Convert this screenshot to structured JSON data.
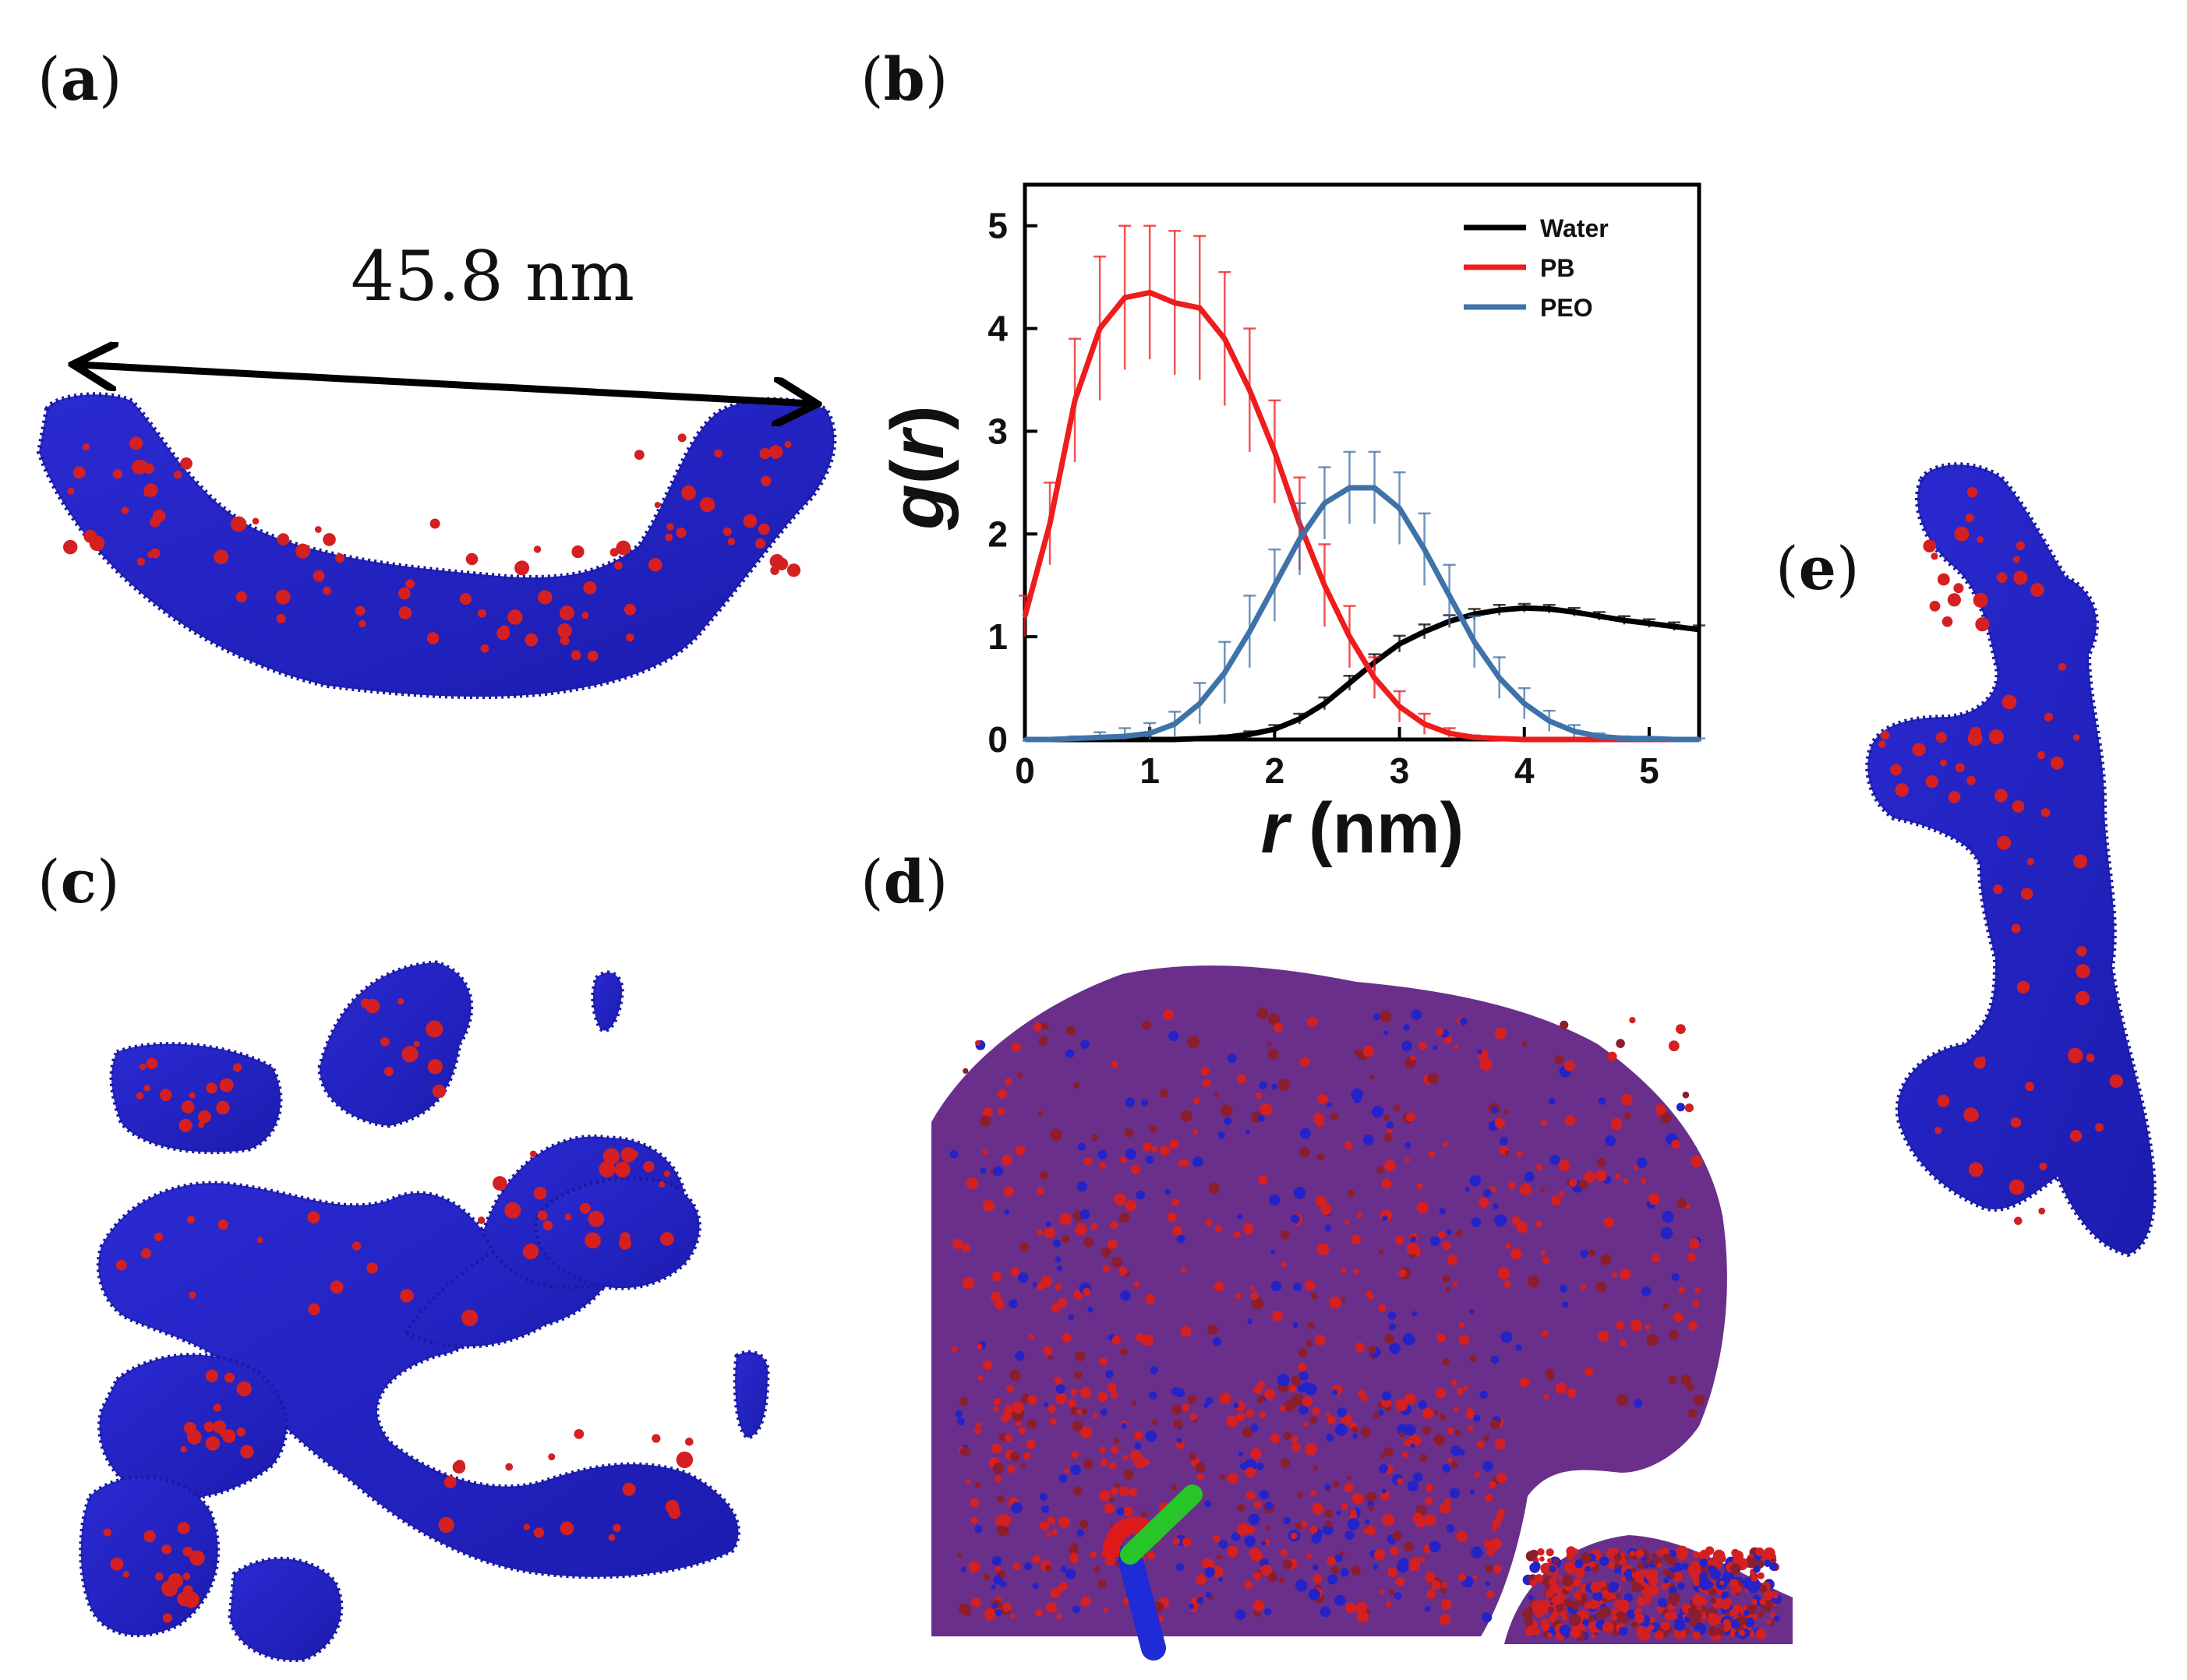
{
  "panels": {
    "a": {
      "open": "(",
      "letter": "a",
      "close": ")"
    },
    "b": {
      "open": "(",
      "letter": "b",
      "close": ")"
    },
    "c": {
      "open": "(",
      "letter": "c",
      "close": ")"
    },
    "d": {
      "open": "(",
      "letter": "d",
      "close": ")"
    },
    "e": {
      "open": "(",
      "letter": "e",
      "close": ")"
    }
  },
  "measurement": {
    "label": "45.8 nm"
  },
  "colors": {
    "shell": "#2323c8",
    "core": "#d42020",
    "water": "#000000",
    "pb": "#ee1c1c",
    "peo": "#3f72a8"
  },
  "chart_data": {
    "type": "line",
    "title": "",
    "xlabel_symbol": "r",
    "xlabel_unit": " (nm)",
    "ylabel_symbol": "g",
    "ylabel_open": "(",
    "ylabel_arg": "r",
    "ylabel_close": ")",
    "xlim": [
      0,
      5.4
    ],
    "ylim": [
      0,
      5.4
    ],
    "xticks": [
      0,
      1,
      2,
      3,
      4,
      5
    ],
    "yticks": [
      0,
      1,
      2,
      3,
      4,
      5
    ],
    "legend_position": "top-right",
    "x": [
      0,
      0.2,
      0.4,
      0.6,
      0.8,
      1.0,
      1.2,
      1.4,
      1.6,
      1.8,
      2.0,
      2.2,
      2.4,
      2.6,
      2.8,
      3.0,
      3.2,
      3.4,
      3.6,
      3.8,
      4.0,
      4.2,
      4.4,
      4.6,
      4.8,
      5.0,
      5.2,
      5.4
    ],
    "series": [
      {
        "name": "Water",
        "color": "#000000",
        "values": [
          0,
          0,
          0,
          0,
          0,
          0,
          0,
          0.01,
          0.02,
          0.05,
          0.1,
          0.2,
          0.35,
          0.55,
          0.75,
          0.93,
          1.05,
          1.15,
          1.22,
          1.26,
          1.28,
          1.27,
          1.24,
          1.2,
          1.16,
          1.13,
          1.1,
          1.07
        ],
        "errors": [
          0,
          0,
          0,
          0,
          0,
          0,
          0,
          0.01,
          0.02,
          0.03,
          0.04,
          0.05,
          0.06,
          0.07,
          0.08,
          0.08,
          0.07,
          0.06,
          0.05,
          0.05,
          0.04,
          0.04,
          0.04,
          0.04,
          0.04,
          0.04,
          0.04,
          0.04
        ]
      },
      {
        "name": "PB",
        "color": "#ee1c1c",
        "values": [
          1.2,
          2.1,
          3.3,
          4.0,
          4.3,
          4.35,
          4.25,
          4.2,
          3.9,
          3.4,
          2.8,
          2.1,
          1.5,
          1.0,
          0.6,
          0.32,
          0.15,
          0.06,
          0.02,
          0.01,
          0,
          0,
          0,
          0,
          0,
          0,
          0,
          0
        ],
        "errors": [
          0.2,
          0.4,
          0.6,
          0.7,
          0.7,
          0.65,
          0.7,
          0.7,
          0.65,
          0.6,
          0.5,
          0.45,
          0.4,
          0.3,
          0.2,
          0.15,
          0.1,
          0.05,
          0.02,
          0.01,
          0,
          0,
          0,
          0,
          0,
          0,
          0,
          0
        ]
      },
      {
        "name": "PEO",
        "color": "#3f72a8",
        "values": [
          0,
          0,
          0.01,
          0.02,
          0.03,
          0.06,
          0.15,
          0.35,
          0.65,
          1.05,
          1.5,
          1.95,
          2.3,
          2.45,
          2.45,
          2.25,
          1.85,
          1.4,
          0.95,
          0.6,
          0.35,
          0.18,
          0.08,
          0.03,
          0.01,
          0.01,
          0,
          0
        ],
        "errors": [
          0,
          0.01,
          0.02,
          0.05,
          0.08,
          0.1,
          0.12,
          0.2,
          0.3,
          0.35,
          0.35,
          0.35,
          0.35,
          0.35,
          0.35,
          0.35,
          0.35,
          0.3,
          0.25,
          0.2,
          0.15,
          0.1,
          0.06,
          0.03,
          0.02,
          0.01,
          0.01,
          0.01
        ]
      }
    ]
  }
}
